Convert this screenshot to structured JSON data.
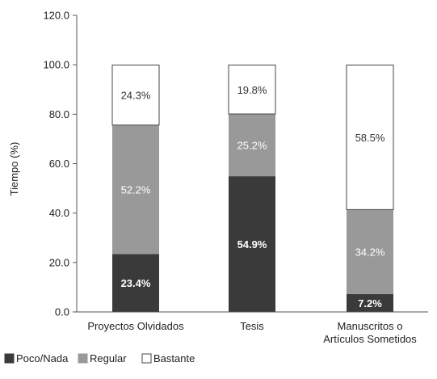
{
  "chart_data": {
    "type": "bar",
    "stacked": true,
    "title": "",
    "xlabel": "",
    "ylabel": "Tiempo (%)",
    "ylim": [
      0,
      120
    ],
    "yticks": [
      "0.0",
      "20.0",
      "40.0",
      "60.0",
      "80.0",
      "100.0",
      "120.0"
    ],
    "ytick_values": [
      0,
      20,
      40,
      60,
      80,
      100,
      120
    ],
    "grid": false,
    "legend_position": "bottom-left",
    "categories": [
      [
        "Proyectos Olvidados"
      ],
      [
        "Tesis"
      ],
      [
        "Manuscritos o",
        "Artículos Sometidos"
      ]
    ],
    "series": [
      {
        "name": "Poco/Nada",
        "color": "#3a3a3a",
        "label_color": "#ffffff",
        "bold_labels": true,
        "values": [
          23.4,
          54.9,
          7.2
        ],
        "labels": [
          "23.4%",
          "54.9%",
          "7.2%"
        ]
      },
      {
        "name": "Regular",
        "color": "#999999",
        "label_color": "#ffffff",
        "bold_labels": false,
        "values": [
          52.2,
          25.2,
          34.2
        ],
        "labels": [
          "52.2%",
          "25.2%",
          "34.2%"
        ]
      },
      {
        "name": "Bastante",
        "color": "#ffffff",
        "label_color": "#333333",
        "bold_labels": false,
        "values": [
          24.3,
          19.8,
          58.5
        ],
        "labels": [
          "24.3%",
          "19.8%",
          "58.5%"
        ]
      }
    ]
  }
}
